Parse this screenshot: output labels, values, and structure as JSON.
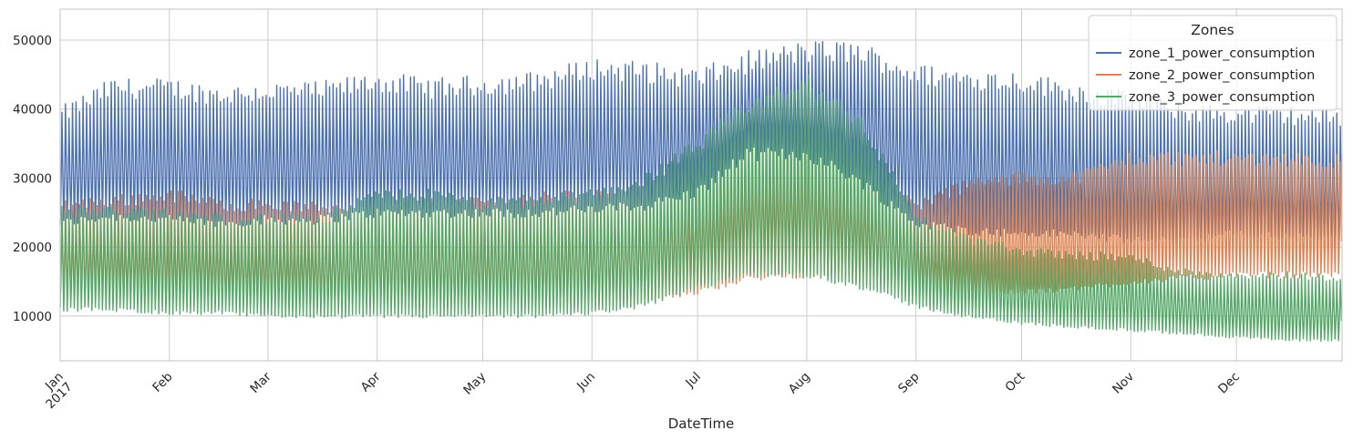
{
  "chart_data": {
    "type": "line",
    "title": "",
    "xlabel": "DateTime",
    "ylabel": "",
    "x_range": [
      "2017-01-01",
      "2017-12-30"
    ],
    "ylim": [
      3500,
      54500
    ],
    "y_ticks": [
      10000,
      20000,
      30000,
      40000,
      50000
    ],
    "x_ticks": [
      {
        "date": "2017-01-01",
        "label": "Jan",
        "sublabel": "2017"
      },
      {
        "date": "2017-02-01",
        "label": "Feb"
      },
      {
        "date": "2017-03-01",
        "label": "Mar"
      },
      {
        "date": "2017-04-01",
        "label": "Apr"
      },
      {
        "date": "2017-05-01",
        "label": "May"
      },
      {
        "date": "2017-06-01",
        "label": "Jun"
      },
      {
        "date": "2017-07-01",
        "label": "Jul"
      },
      {
        "date": "2017-08-01",
        "label": "Aug"
      },
      {
        "date": "2017-09-01",
        "label": "Sep"
      },
      {
        "date": "2017-10-01",
        "label": "Oct"
      },
      {
        "date": "2017-11-01",
        "label": "Nov"
      },
      {
        "date": "2017-12-01",
        "label": "Dec"
      }
    ],
    "grid": true,
    "legend": {
      "title": "Zones",
      "position": "top-right"
    },
    "series_note": "daily min/max envelope of each series (daily cycles)",
    "series": [
      {
        "name": "zone_1_power_consumption",
        "color": "#4c72b0",
        "x": [
          "2017-01-01",
          "2017-01-15",
          "2017-02-01",
          "2017-02-15",
          "2017-03-01",
          "2017-03-15",
          "2017-04-01",
          "2017-04-15",
          "2017-05-01",
          "2017-05-15",
          "2017-06-01",
          "2017-06-15",
          "2017-07-01",
          "2017-07-15",
          "2017-08-01",
          "2017-08-15",
          "2017-09-01",
          "2017-09-15",
          "2017-10-01",
          "2017-10-15",
          "2017-11-01",
          "2017-11-15",
          "2017-12-01",
          "2017-12-15",
          "2017-12-30"
        ],
        "max": [
          40500,
          44500,
          44500,
          43500,
          44000,
          44000,
          45500,
          44500,
          45000,
          45500,
          47500,
          47000,
          46000,
          48500,
          50000,
          50000,
          46500,
          46000,
          45500,
          44000,
          42500,
          41000,
          40500,
          40500,
          40000
        ],
        "min": [
          23500,
          24500,
          24000,
          23500,
          24000,
          24000,
          25000,
          25000,
          25000,
          25000,
          25500,
          26000,
          28000,
          33500,
          33500,
          30000,
          23500,
          22500,
          22000,
          22000,
          21000,
          21000,
          22000,
          21500,
          21000
        ]
      },
      {
        "name": "zone_2_power_consumption",
        "color": "#dd8452",
        "x": [
          "2017-01-01",
          "2017-01-15",
          "2017-02-01",
          "2017-02-15",
          "2017-03-01",
          "2017-03-15",
          "2017-04-01",
          "2017-04-15",
          "2017-05-01",
          "2017-05-15",
          "2017-06-01",
          "2017-06-15",
          "2017-07-01",
          "2017-07-15",
          "2017-08-01",
          "2017-08-15",
          "2017-09-01",
          "2017-09-15",
          "2017-10-01",
          "2017-10-15",
          "2017-11-01",
          "2017-11-15",
          "2017-12-01",
          "2017-12-15",
          "2017-12-30"
        ],
        "max": [
          27000,
          27500,
          28500,
          27000,
          27000,
          26500,
          27000,
          27000,
          27500,
          28000,
          28500,
          28500,
          30000,
          34000,
          35000,
          31500,
          27000,
          30000,
          31000,
          31000,
          34000,
          34000,
          34000,
          34000,
          33500
        ],
        "min": [
          13500,
          13500,
          12500,
          12500,
          12500,
          12000,
          11500,
          11000,
          11500,
          11500,
          11500,
          12000,
          13500,
          15500,
          16000,
          15000,
          13000,
          13000,
          13500,
          14000,
          15000,
          15500,
          16000,
          16000,
          16000
        ]
      },
      {
        "name": "zone_3_power_consumption",
        "color": "#55a868",
        "x": [
          "2017-01-01",
          "2017-01-15",
          "2017-02-01",
          "2017-02-15",
          "2017-03-01",
          "2017-03-15",
          "2017-04-01",
          "2017-04-15",
          "2017-05-01",
          "2017-05-15",
          "2017-06-01",
          "2017-06-15",
          "2017-07-01",
          "2017-07-15",
          "2017-08-01",
          "2017-08-15",
          "2017-09-01",
          "2017-09-15",
          "2017-10-01",
          "2017-10-15",
          "2017-11-01",
          "2017-11-15",
          "2017-12-01",
          "2017-12-15",
          "2017-12-30"
        ],
        "max": [
          26000,
          26000,
          25500,
          25000,
          25000,
          24500,
          28500,
          28500,
          27000,
          27500,
          28500,
          30500,
          36000,
          42000,
          45000,
          40000,
          25000,
          22000,
          20000,
          19500,
          19000,
          17000,
          16500,
          16500,
          16000
        ],
        "min": [
          11000,
          11000,
          10500,
          10500,
          10000,
          10000,
          10000,
          10000,
          10000,
          10000,
          10500,
          11500,
          14000,
          16000,
          16000,
          14500,
          11500,
          10000,
          9000,
          8500,
          8000,
          7500,
          7000,
          6500,
          6500
        ]
      }
    ]
  }
}
